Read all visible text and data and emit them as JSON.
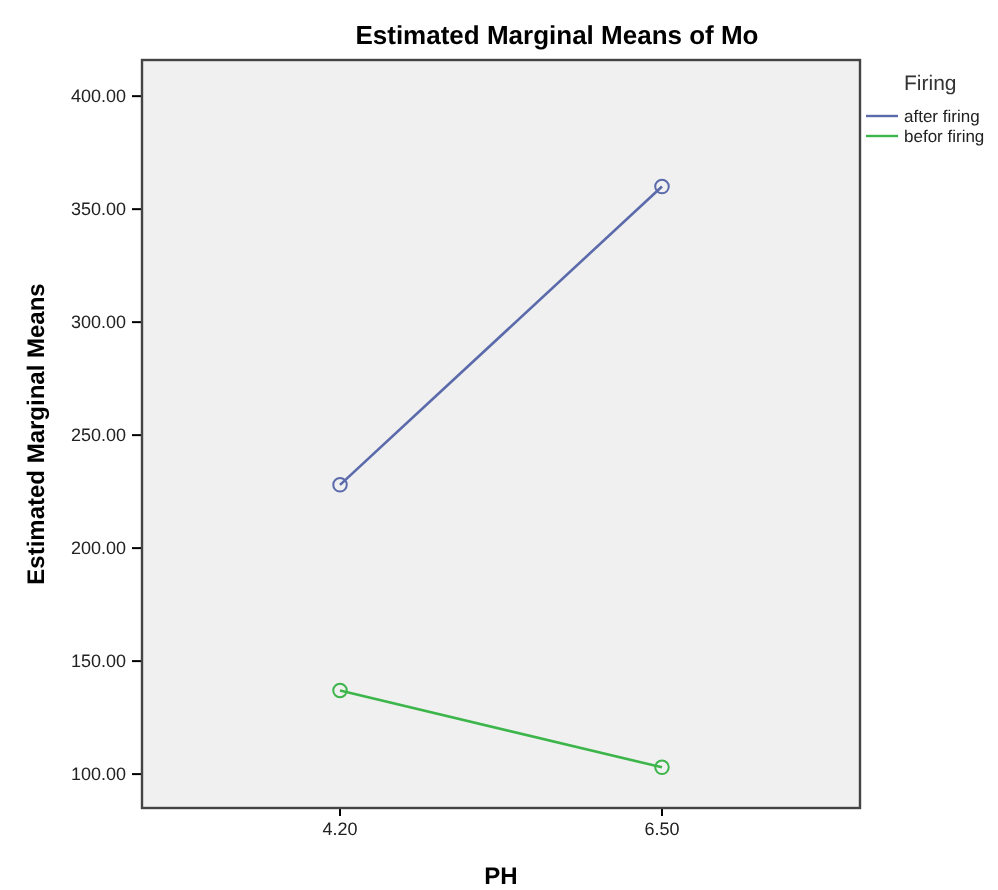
{
  "chart_data": {
    "type": "line",
    "title": "Estimated Marginal Means of Mo",
    "xlabel": "PH",
    "ylabel": "Estimated Marginal Means",
    "legend_title": "Firing",
    "categories": [
      "4.20",
      "6.50"
    ],
    "series": [
      {
        "name": "after firing",
        "color": "#5a6aaa",
        "values": [
          228,
          360
        ]
      },
      {
        "name": "befor firing",
        "color": "#3cb54a",
        "values": [
          137,
          103
        ]
      }
    ],
    "ylim": [
      85,
      416
    ],
    "yticks": [
      {
        "value": 100,
        "label": "100.00"
      },
      {
        "value": 150,
        "label": "150.00"
      },
      {
        "value": 200,
        "label": "200.00"
      },
      {
        "value": 250,
        "label": "250.00"
      },
      {
        "value": 300,
        "label": "300.00"
      },
      {
        "value": 350,
        "label": "350.00"
      },
      {
        "value": 400,
        "label": "400.00"
      }
    ],
    "grid": false,
    "legend": "top right",
    "marker": "circle",
    "line_style": "solid"
  }
}
